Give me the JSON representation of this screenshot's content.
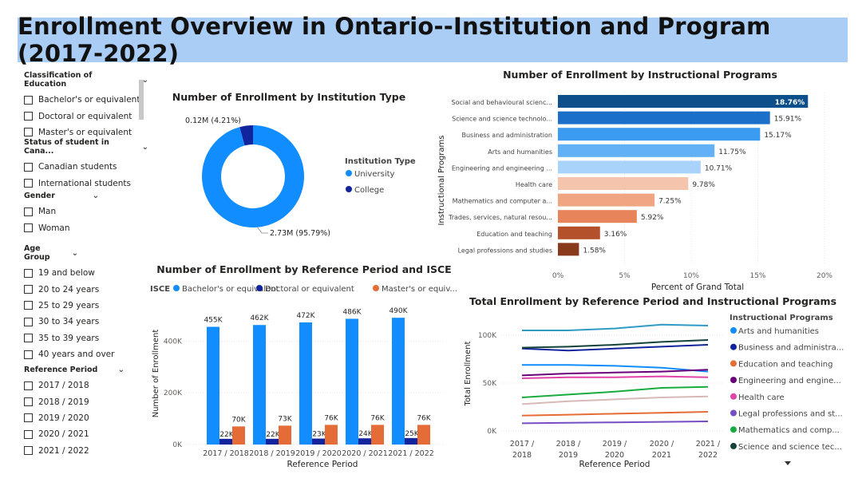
{
  "title": "Enrollment Overview in Ontario--Institution and Program (2017-2022)",
  "slicers": [
    {
      "name": "Classification of Education",
      "options": [
        "Bachelor's or equivalent",
        "Doctoral or equivalent",
        "Master's or equivalent"
      ]
    },
    {
      "name": "Status of student in Cana...",
      "options": [
        "Canadian students",
        "International students"
      ]
    },
    {
      "name": "Gender",
      "options": [
        "Man",
        "Woman"
      ]
    },
    {
      "name": "Age Group",
      "options": [
        "19 and below",
        "20 to 24 years",
        "25 to 29 years",
        "30 to 34 years",
        "35 to 39 years",
        "40 years and over"
      ]
    },
    {
      "name": "Reference Period",
      "options": [
        "2017 / 2018",
        "2018 / 2019",
        "2019 / 2020",
        "2020 / 2021",
        "2021 / 2022"
      ]
    }
  ],
  "colors": {
    "university": "#118dff",
    "college": "#12239e",
    "doctoral": "#12239e",
    "master": "#e66c37"
  },
  "chart_data": [
    {
      "type": "pie",
      "title": "Number of Enrollment by Institution Type",
      "legend_title": "Institution Type",
      "legend_position": "right",
      "categories": [
        "University",
        "College"
      ],
      "values": [
        2.73,
        0.12
      ],
      "data_labels": [
        "2.73M (95.79%)",
        "0.12M (4.21%)"
      ],
      "colors": [
        "#118dff",
        "#12239e"
      ]
    },
    {
      "type": "bar",
      "title": "Number of Enrollment by Instructional Programs",
      "xlabel": "Percent of Grand Total",
      "ylabel": "Instructional Programs",
      "xlim": [
        0,
        20
      ],
      "xticks": [
        "0%",
        "5%",
        "10%",
        "15%",
        "20%"
      ],
      "categories": [
        "Social and behavioural scienc...",
        "Science and science technolo...",
        "Business and administration",
        "Arts and humanities",
        "Engineering and engineering ...",
        "Health care",
        "Mathematics and computer a...",
        "Trades, services, natural resou...",
        "Education and teaching",
        "Legal professions and studies"
      ],
      "values": [
        18.76,
        15.91,
        15.17,
        11.75,
        10.71,
        9.78,
        7.25,
        5.92,
        3.16,
        1.58
      ],
      "labels": [
        "18.76%",
        "15.91%",
        "15.17%",
        "11.75%",
        "10.71%",
        "9.78%",
        "7.25%",
        "5.92%",
        "3.16%",
        "1.58%"
      ],
      "colors": [
        "#0d4f8b",
        "#1c6fc9",
        "#3a9bf0",
        "#62b0f5",
        "#a9d3fa",
        "#f5c4ad",
        "#f0a583",
        "#e7845a",
        "#b5512a",
        "#8a3a1c"
      ]
    },
    {
      "type": "bar",
      "title": "Number of Enrollment by Reference Period and ISCE",
      "legend_title": "ISCE",
      "legend_position": "top",
      "xlabel": "Reference Period",
      "ylabel": "Number of Enrollment",
      "ylim": [
        0,
        600000
      ],
      "yticks": [
        "0K",
        "200K",
        "400K"
      ],
      "categories": [
        "2017 / 2018",
        "2018 / 2019",
        "2019 / 2020",
        "2020 / 2021",
        "2021 / 2022"
      ],
      "series": [
        {
          "name": "Bachelor's or equivalent",
          "values": [
            455000,
            462000,
            472000,
            486000,
            490000
          ],
          "labels": [
            "455K",
            "462K",
            "472K",
            "486K",
            "490K"
          ],
          "color": "#118dff"
        },
        {
          "name": "Doctoral or equivalent",
          "values": [
            22000,
            22000,
            23000,
            24000,
            25000
          ],
          "labels": [
            "22K",
            "22K",
            "23K",
            "24K",
            "25K"
          ],
          "color": "#12239e"
        },
        {
          "name": "Master's or equiv...",
          "values": [
            70000,
            73000,
            76000,
            76000,
            76000
          ],
          "labels": [
            "70K",
            "73K",
            "76K",
            "76K",
            "76K"
          ],
          "color": "#e66c37"
        }
      ]
    },
    {
      "type": "line",
      "title": "Total Enrollment by Reference Period and Instructional Programs",
      "legend_title": "Instructional Programs",
      "legend_position": "right",
      "xlabel": "Reference Period",
      "ylabel": "Total Enrollment",
      "ylim": [
        0,
        120000
      ],
      "yticks": [
        "0K",
        "50K",
        "100K"
      ],
      "categories": [
        "2017 / 2018",
        "2018 / 2019",
        "2019 / 2020",
        "2020 / 2021",
        "2021 / 2022"
      ],
      "series": [
        {
          "name": "Arts and humanities",
          "values": [
            69000,
            69000,
            68000,
            66000,
            62000
          ],
          "color": "#118dff"
        },
        {
          "name": "Business and administra...",
          "values": [
            86000,
            84000,
            86000,
            88000,
            90000
          ],
          "color": "#12239e"
        },
        {
          "name": "Education and teaching",
          "values": [
            16000,
            17000,
            18000,
            19000,
            20000
          ],
          "color": "#e66c37"
        },
        {
          "name": "Engineering and engine...",
          "values": [
            58000,
            60000,
            61000,
            62000,
            64000
          ],
          "color": "#6b007b"
        },
        {
          "name": "Health care",
          "values": [
            55000,
            56000,
            56000,
            57000,
            56000
          ],
          "color": "#e044a7"
        },
        {
          "name": "Legal professions and st...",
          "values": [
            8000,
            8500,
            9000,
            9500,
            10000
          ],
          "color": "#744ec2"
        },
        {
          "name": "Mathematics and comp...",
          "values": [
            35000,
            38000,
            41000,
            45000,
            46000
          ],
          "color": "#1aab40"
        },
        {
          "name": "Science and science tec...",
          "values": [
            87000,
            88000,
            90000,
            93000,
            95000
          ],
          "color": "#15433a"
        },
        {
          "name": "",
          "values": [
            105000,
            105000,
            107000,
            111000,
            110000
          ],
          "color": "#2f9bc4"
        },
        {
          "name": "",
          "values": [
            28000,
            31000,
            33000,
            35000,
            36000
          ],
          "color": "#d9b8b8"
        }
      ]
    }
  ]
}
